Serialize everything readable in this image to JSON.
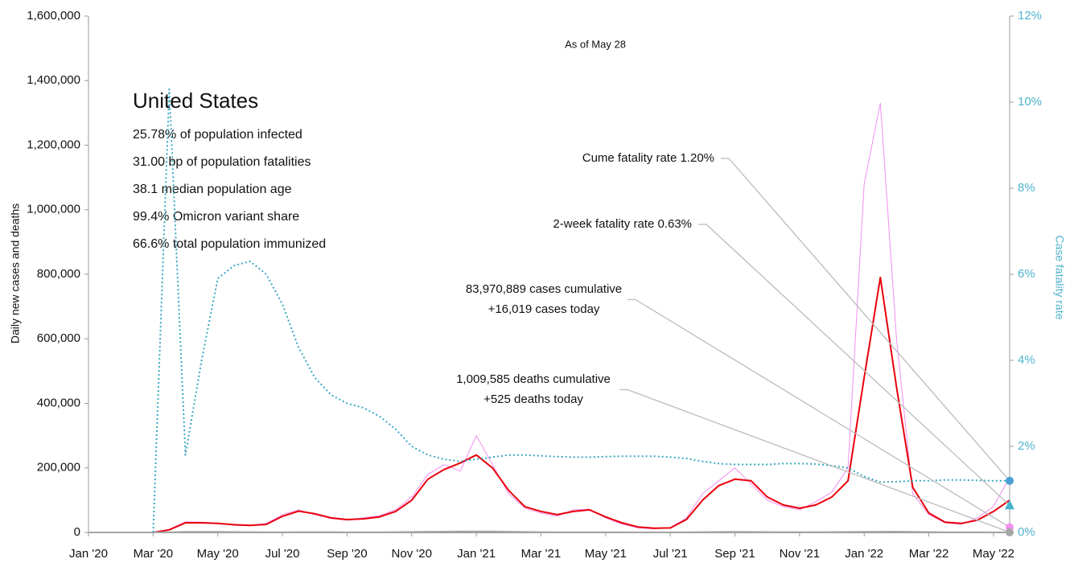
{
  "chart_data": {
    "type": "line",
    "subtitle": "As of May 28",
    "ylabel": "Daily new cases and deaths",
    "y2label": "Case fatality rate",
    "info": {
      "title": "United States",
      "lines": [
        "25.78% of population infected",
        "31.00 bp of population fatalities",
        "38.1 median population age",
        "99.4% Omicron variant share",
        "66.6% total population immunized"
      ]
    },
    "categories": [
      "Jan '20",
      null,
      null,
      null,
      "Mar '20",
      null,
      null,
      null,
      "May '20",
      null,
      null,
      null,
      "Jul '20",
      null,
      null,
      null,
      "Sep '20",
      null,
      null,
      null,
      "Nov '20",
      null,
      null,
      null,
      "Jan '21",
      null,
      null,
      null,
      "Mar '21",
      null,
      null,
      null,
      "May '21",
      null,
      null,
      null,
      "Jul '21",
      null,
      null,
      null,
      "Sep '21",
      null,
      null,
      null,
      "Nov '21",
      null,
      null,
      null,
      "Jan '22",
      null,
      null,
      null,
      "Mar '22",
      null,
      null,
      null,
      "May '22",
      null
    ],
    "series": [
      {
        "color": "#f28ff0",
        "width": 1,
        "values": [
          0,
          0,
          0,
          0,
          0,
          10000,
          33000,
          32000,
          29000,
          22000,
          21000,
          28000,
          55000,
          70000,
          55000,
          43000,
          38000,
          45000,
          52000,
          70000,
          110000,
          180000,
          210000,
          190000,
          300000,
          210000,
          120000,
          75000,
          60000,
          50000,
          70000,
          72000,
          45000,
          26000,
          14000,
          11000,
          15000,
          45000,
          120000,
          160000,
          200000,
          150000,
          100000,
          80000,
          70000,
          95000,
          125000,
          200000,
          1080000,
          1330000,
          600000,
          120000,
          55000,
          30000,
          25000,
          45000,
          80000,
          170000
        ]
      },
      {
        "color": "#e8000b",
        "width": 2,
        "values": [
          0,
          0,
          0,
          0,
          0,
          8000,
          30000,
          30000,
          28000,
          24000,
          22000,
          25000,
          50000,
          66000,
          58000,
          45000,
          40000,
          42000,
          48000,
          65000,
          100000,
          165000,
          195000,
          215000,
          240000,
          200000,
          130000,
          80000,
          65000,
          55000,
          65000,
          70000,
          48000,
          30000,
          17000,
          13000,
          14000,
          40000,
          100000,
          145000,
          165000,
          160000,
          110000,
          85000,
          75000,
          85000,
          110000,
          160000,
          480000,
          790000,
          450000,
          140000,
          60000,
          32000,
          28000,
          38000,
          65000,
          100000
        ]
      },
      {
        "color": "#a6a6a6",
        "width": 2,
        "values": [
          0,
          0,
          0,
          0,
          0,
          500,
          2000,
          2000,
          1800,
          1300,
          900,
          700,
          800,
          1100,
          1000,
          900,
          800,
          750,
          800,
          1000,
          1500,
          2200,
          2600,
          3000,
          3300,
          3000,
          2200,
          1500,
          1000,
          800,
          700,
          700,
          600,
          400,
          300,
          300,
          250,
          400,
          900,
          1400,
          1900,
          1600,
          1300,
          1100,
          1000,
          1100,
          1200,
          1400,
          2000,
          2300,
          2500,
          1900,
          1200,
          700,
          500,
          400,
          350,
          450
        ]
      },
      {
        "color": "#3aa7c4",
        "width": 2,
        "dash": true,
        "axis": "y2",
        "values": [
          null,
          null,
          null,
          null,
          0,
          10.3,
          1.8,
          4.0,
          5.9,
          6.2,
          6.3,
          6.0,
          5.3,
          4.3,
          3.6,
          3.2,
          3.0,
          2.9,
          2.7,
          2.4,
          2.0,
          1.8,
          1.7,
          1.65,
          1.7,
          1.75,
          1.8,
          1.8,
          1.78,
          1.76,
          1.75,
          1.75,
          1.76,
          1.77,
          1.77,
          1.77,
          1.75,
          1.72,
          1.65,
          1.6,
          1.58,
          1.58,
          1.58,
          1.6,
          1.6,
          1.59,
          1.55,
          1.5,
          1.3,
          1.17,
          1.18,
          1.2,
          1.2,
          1.22,
          1.22,
          1.21,
          1.2,
          1.2
        ]
      }
    ],
    "annotations": [
      {
        "lines": [
          "Cume fatality rate 1.20%"
        ],
        "value": 1.2,
        "axis": "y2",
        "color": "#4a9fd0",
        "marker": "circle"
      },
      {
        "lines": [
          "2-week fatality rate 0.63%"
        ],
        "value": 0.63,
        "axis": "y2",
        "color": "#49b2cf",
        "marker": "triangle"
      },
      {
        "lines": [
          "83,970,889 cases cumulative",
          "+16,019 cases today"
        ],
        "value": 16019,
        "axis": "y",
        "color": "#f28ff0",
        "marker": "circle"
      },
      {
        "lines": [
          "1,009,585 deaths cumulative",
          "+525 deaths today"
        ],
        "value": 525,
        "axis": "y",
        "color": "#a6a6a6",
        "marker": "circle"
      }
    ],
    "ylim": [
      0,
      1600000
    ],
    "yticks": [
      0,
      {
        "value": 200000,
        "label": "200,000"
      },
      {
        "value": 400000,
        "label": "400,000"
      },
      {
        "value": 600000,
        "label": "600,000"
      },
      {
        "value": 800000,
        "label": "800,000"
      },
      {
        "value": 1000000,
        "label": "1,000,000"
      },
      {
        "value": 1200000,
        "label": "1,200,000"
      },
      {
        "value": 1400000,
        "label": "1,400,000"
      },
      {
        "value": 1600000,
        "label": "1,600,000"
      }
    ],
    "y2lim": [
      0,
      12
    ],
    "y2ticks": [
      {
        "value": 0,
        "label": "0%"
      },
      {
        "value": 2,
        "label": "2%"
      },
      {
        "value": 4,
        "label": "4%"
      },
      {
        "value": 6,
        "label": "6%"
      },
      {
        "value": 8,
        "label": "8%"
      },
      {
        "value": 10,
        "label": "10%"
      },
      {
        "value": 12,
        "label": "12%"
      }
    ],
    "y2color": "#4fb3cc"
  }
}
